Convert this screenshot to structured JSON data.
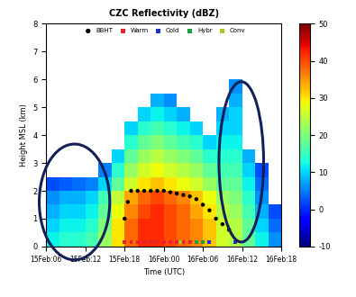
{
  "chart_data": {
    "type": "heatmap",
    "title": "CZC Reflectivity (dBZ)",
    "x_label": "Time (UTC)",
    "y_label": "Height MSL (km)",
    "xlim": [
      6,
      42
    ],
    "xticks": [
      {
        "value": 6,
        "label": "15Feb:06"
      },
      {
        "value": 12,
        "label": "15Feb:12"
      },
      {
        "value": 18,
        "label": "15Feb:18"
      },
      {
        "value": 24,
        "label": "16Feb:00"
      },
      {
        "value": 30,
        "label": "16Feb:06"
      },
      {
        "value": 36,
        "label": "16Feb:12"
      },
      {
        "value": 42,
        "label": "16Feb:18"
      }
    ],
    "ylim": [
      0,
      8
    ],
    "yticks": [
      0,
      1,
      2,
      3,
      4,
      5,
      6,
      7,
      8
    ],
    "grid": false,
    "legend": "upper center",
    "x_edges": [
      6,
      8,
      10,
      12,
      14,
      16,
      18,
      20,
      22,
      24,
      26,
      28,
      30,
      32,
      34,
      36,
      38,
      40,
      42
    ],
    "height_edges": [
      0,
      0.5,
      1,
      1.5,
      2,
      2.5,
      3,
      3.5,
      4,
      4.5,
      5,
      5.5,
      6,
      6.5,
      7,
      7.5,
      8
    ],
    "reflectivity": [
      [
        12,
        10,
        8,
        6,
        2,
        null,
        null,
        null,
        null,
        null,
        null,
        null,
        null,
        null,
        null,
        null
      ],
      [
        14,
        12,
        10,
        8,
        3,
        null,
        null,
        null,
        null,
        null,
        null,
        null,
        null,
        null,
        null,
        null
      ],
      [
        14,
        12,
        10,
        8,
        4,
        null,
        null,
        null,
        null,
        null,
        null,
        null,
        null,
        null,
        null,
        null
      ],
      [
        16,
        14,
        12,
        10,
        5,
        null,
        null,
        null,
        null,
        null,
        null,
        null,
        null,
        null,
        null,
        null
      ],
      [
        22,
        20,
        18,
        16,
        10,
        5,
        null,
        null,
        null,
        null,
        null,
        null,
        null,
        null,
        null,
        null
      ],
      [
        30,
        30,
        28,
        25,
        18,
        14,
        10,
        null,
        null,
        null,
        null,
        null,
        null,
        null,
        null,
        null
      ],
      [
        38,
        38,
        36,
        34,
        26,
        22,
        18,
        14,
        10,
        null,
        null,
        null,
        null,
        null,
        null,
        null
      ],
      [
        42,
        42,
        40,
        38,
        30,
        26,
        22,
        18,
        14,
        10,
        null,
        null,
        null,
        null,
        null,
        null
      ],
      [
        42,
        42,
        42,
        40,
        32,
        28,
        24,
        20,
        16,
        12,
        8,
        null,
        null,
        null,
        null,
        null
      ],
      [
        40,
        40,
        40,
        38,
        30,
        26,
        22,
        18,
        14,
        10,
        6,
        null,
        null,
        null,
        null,
        null
      ],
      [
        38,
        38,
        38,
        36,
        28,
        24,
        20,
        16,
        12,
        8,
        null,
        null,
        null,
        null,
        null,
        null
      ],
      [
        36,
        36,
        34,
        32,
        26,
        22,
        18,
        14,
        10,
        null,
        null,
        null,
        null,
        null,
        null,
        null
      ],
      [
        32,
        32,
        30,
        28,
        22,
        18,
        14,
        10,
        null,
        null,
        null,
        null,
        null,
        null,
        null,
        null
      ],
      [
        26,
        26,
        24,
        22,
        18,
        16,
        14,
        12,
        10,
        8,
        null,
        null,
        null,
        null,
        null,
        null
      ],
      [
        24,
        24,
        22,
        20,
        18,
        16,
        14,
        12,
        10,
        10,
        8,
        6,
        null,
        null,
        null,
        null
      ],
      [
        18,
        18,
        16,
        14,
        12,
        10,
        8,
        null,
        null,
        null,
        null,
        null,
        null,
        null,
        null,
        null
      ],
      [
        12,
        10,
        8,
        6,
        4,
        2,
        null,
        null,
        null,
        null,
        null,
        null,
        null,
        null,
        null,
        null
      ],
      [
        6,
        4,
        2,
        null,
        null,
        null,
        null,
        null,
        null,
        null,
        null,
        null,
        null,
        null,
        null,
        null
      ]
    ],
    "colorbar_range": [
      -10,
      50
    ],
    "colorbar_ticks": [
      -10,
      0,
      10,
      20,
      30,
      40,
      50
    ],
    "series": [
      {
        "name": "BBHT",
        "color": "#000000",
        "marker": "o",
        "x": [
          18,
          18.5,
          19,
          20,
          21,
          22,
          23,
          24,
          25,
          26,
          27,
          28,
          29,
          30,
          31,
          32,
          33,
          34
        ],
        "values": [
          1.0,
          1.6,
          2.0,
          2.0,
          2.0,
          2.0,
          2.0,
          2.0,
          1.95,
          1.9,
          1.85,
          1.8,
          1.7,
          1.5,
          1.3,
          1.0,
          0.8,
          0.6
        ]
      },
      {
        "name": "Warm",
        "color": "#e8212e",
        "marker": "s",
        "x": [
          18,
          19,
          20,
          21,
          22,
          23,
          24,
          25,
          26,
          27,
          28
        ],
        "values": [
          0.15,
          0.15,
          0.15,
          0.15,
          0.15,
          0.15,
          0.15,
          0.15,
          0.15,
          0.15,
          0.15
        ]
      },
      {
        "name": "Cold",
        "color": "#1f2fd0",
        "marker": "s",
        "x": [
          31,
          35
        ],
        "values": [
          0.15,
          0.15
        ]
      },
      {
        "name": "Hybr",
        "color": "#1e9e3a",
        "marker": "s",
        "x": [
          29,
          30
        ],
        "values": [
          0.15,
          0.15
        ]
      },
      {
        "name": "Conv",
        "color": "#a8c81e",
        "marker": "s",
        "x": [
          26.5
        ],
        "values": [
          0.15
        ]
      }
    ]
  }
}
